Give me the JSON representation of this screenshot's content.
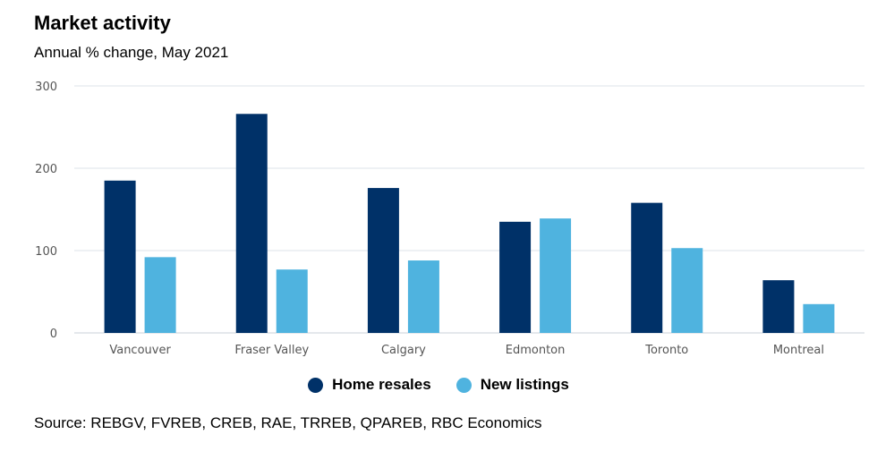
{
  "title": "Market activity",
  "subtitle": "Annual % change, May 2021",
  "source": "Source: REBGV, FVREB, CREB, RAE, TRREB, QPAREB, RBC Economics",
  "colors": {
    "home_resales": "#003168",
    "new_listings": "#4fb3df",
    "grid": "#dde3ea"
  },
  "chart_data": {
    "type": "bar",
    "categories": [
      "Vancouver",
      "Fraser Valley",
      "Calgary",
      "Edmonton",
      "Toronto",
      "Montreal"
    ],
    "series": [
      {
        "name": "Home resales",
        "values": [
          185,
          266,
          176,
          135,
          158,
          64
        ]
      },
      {
        "name": "New listings",
        "values": [
          92,
          77,
          88,
          139,
          103,
          35
        ]
      }
    ],
    "ylim": [
      0,
      300
    ],
    "yticks": [
      0,
      100,
      200,
      300
    ],
    "xlabel": "",
    "ylabel": "",
    "grid": true,
    "legend": "bottom-center"
  }
}
